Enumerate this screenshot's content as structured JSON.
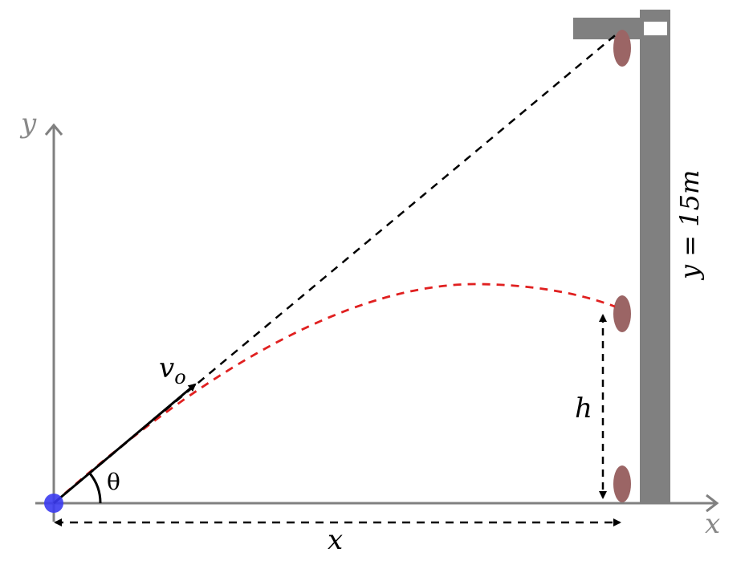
{
  "labels": {
    "y_axis": "y",
    "x_axis": "x",
    "velocity_main": "v",
    "velocity_sub": "o",
    "angle": "θ",
    "height": "h",
    "distance": "x",
    "wall_eq": "y = 15",
    "wall_unit": "m"
  },
  "colors": {
    "axis": "#808080",
    "projectile": "#3b3bf0",
    "trajectory": "#e02020",
    "sightline": "#000000",
    "wall": "#808080",
    "target": "#9b6565"
  }
}
